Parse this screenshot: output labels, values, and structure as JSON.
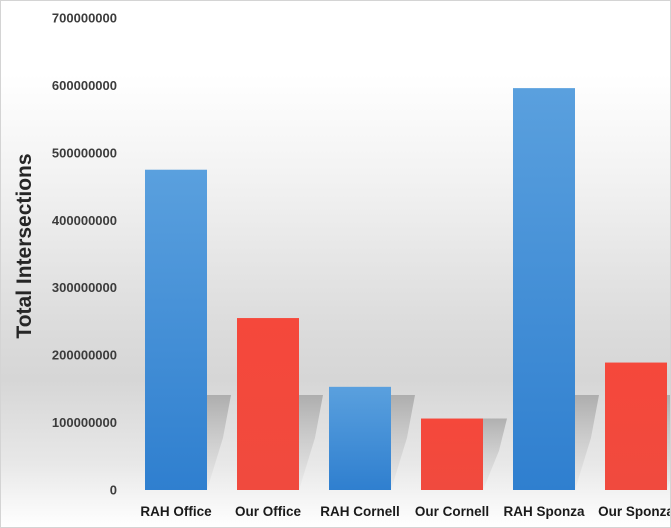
{
  "chart_data": {
    "type": "bar",
    "title": "",
    "xlabel": "",
    "ylabel": "Total Intersections",
    "categories": [
      "RAH Office",
      "Our Office",
      "RAH Cornell",
      "Our Cornell",
      "RAH Sponza",
      "Our Sponza"
    ],
    "values": [
      475000000,
      255000000,
      153000000,
      106000000,
      596000000,
      189000000
    ],
    "bar_colors": [
      "#3d8bd9",
      "#f4493c",
      "#3d8bd9",
      "#f4493c",
      "#3d8bd9",
      "#f4493c"
    ],
    "ylim": [
      0,
      700000000
    ],
    "yticks": [
      "0",
      "100000000",
      "200000000",
      "300000000",
      "400000000",
      "500000000",
      "600000000",
      "700000000"
    ],
    "grid": false,
    "legend": "none"
  }
}
